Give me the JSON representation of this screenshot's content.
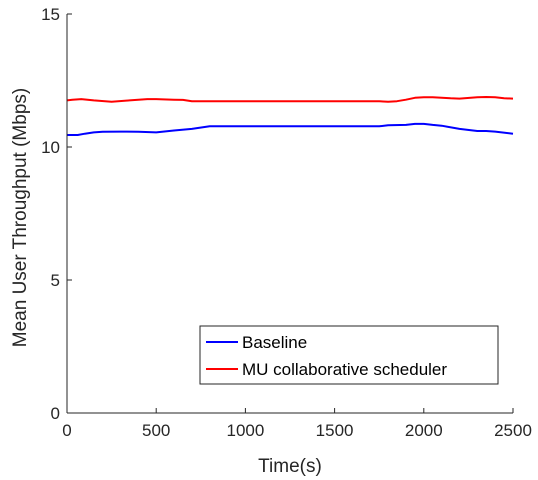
{
  "chart_data": {
    "type": "line",
    "xlabel": "Time(s)",
    "ylabel": "Mean User Throughput (Mbps)",
    "xlim": [
      0,
      2500
    ],
    "ylim": [
      0,
      15
    ],
    "xticks": [
      0,
      500,
      1000,
      1500,
      2000,
      2500
    ],
    "yticks": [
      0,
      5,
      10,
      15
    ],
    "grid": false,
    "legend_position": "bottom-right",
    "series": [
      {
        "name": "Baseline",
        "color": "#0000ff",
        "x": [
          0,
          60,
          100,
          150,
          200,
          300,
          400,
          500,
          600,
          700,
          800,
          900,
          1000,
          1200,
          1400,
          1600,
          1750,
          1800,
          1900,
          1950,
          2000,
          2050,
          2100,
          2200,
          2300,
          2350,
          2400,
          2500
        ],
        "y": [
          10.45,
          10.45,
          10.5,
          10.55,
          10.57,
          10.58,
          10.57,
          10.55,
          10.62,
          10.68,
          10.78,
          10.78,
          10.78,
          10.78,
          10.78,
          10.78,
          10.78,
          10.82,
          10.83,
          10.87,
          10.87,
          10.83,
          10.8,
          10.68,
          10.6,
          10.6,
          10.58,
          10.5
        ]
      },
      {
        "name": "MU collaborative scheduler",
        "color": "#ff0000",
        "x": [
          0,
          30,
          80,
          150,
          250,
          350,
          450,
          500,
          600,
          650,
          700,
          800,
          1000,
          1200,
          1400,
          1600,
          1750,
          1800,
          1850,
          1900,
          1950,
          2000,
          2050,
          2150,
          2200,
          2300,
          2350,
          2400,
          2450,
          2500
        ],
        "y": [
          11.75,
          11.78,
          11.8,
          11.75,
          11.7,
          11.75,
          11.8,
          11.8,
          11.78,
          11.77,
          11.72,
          11.72,
          11.72,
          11.72,
          11.72,
          11.72,
          11.72,
          11.7,
          11.72,
          11.78,
          11.85,
          11.87,
          11.87,
          11.83,
          11.82,
          11.87,
          11.88,
          11.87,
          11.83,
          11.82
        ]
      }
    ]
  }
}
